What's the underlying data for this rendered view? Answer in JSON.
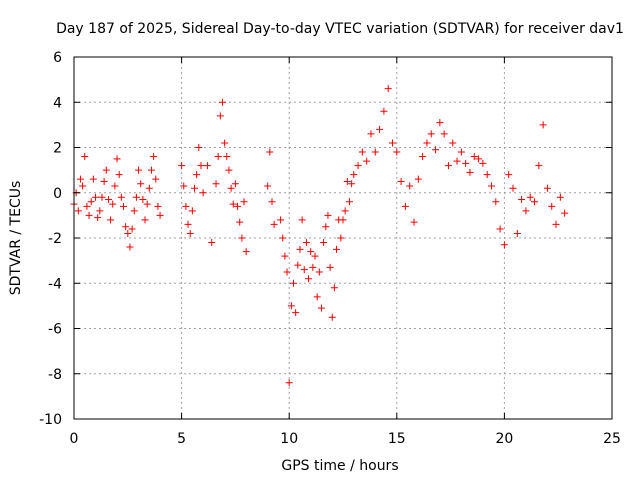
{
  "chart_data": {
    "type": "scatter",
    "title": "Day 187 of 2025, Sidereal Day-to-day VTEC variation (SDTVAR) for receiver dav1",
    "xlabel": "GPS time / hours",
    "ylabel": "SDTVAR / TECUs",
    "xlim": [
      0,
      25
    ],
    "ylim": [
      -10,
      6
    ],
    "xticks": [
      0,
      5,
      10,
      15,
      20,
      25
    ],
    "yticks": [
      -10,
      -8,
      -6,
      -4,
      -2,
      0,
      2,
      4,
      6
    ],
    "grid": true,
    "marker": "+",
    "color": "#ff0000",
    "series": [
      {
        "name": "SDTVAR",
        "x": [
          0.0,
          0.1,
          0.2,
          0.3,
          0.4,
          0.5,
          0.6,
          0.7,
          0.8,
          0.9,
          1.0,
          1.1,
          1.2,
          1.3,
          1.4,
          1.5,
          1.6,
          1.7,
          1.8,
          1.9,
          2.0,
          2.1,
          2.2,
          2.3,
          2.4,
          2.5,
          2.6,
          2.7,
          2.8,
          2.9,
          3.0,
          3.1,
          3.2,
          3.3,
          3.4,
          3.5,
          3.6,
          3.7,
          3.8,
          3.9,
          4.0,
          5.0,
          5.1,
          5.2,
          5.3,
          5.4,
          5.5,
          5.6,
          5.7,
          5.8,
          5.9,
          6.0,
          6.2,
          6.4,
          6.6,
          6.7,
          6.8,
          6.9,
          7.0,
          7.1,
          7.2,
          7.3,
          7.4,
          7.5,
          7.6,
          7.7,
          7.8,
          7.9,
          8.0,
          9.0,
          9.1,
          9.2,
          9.3,
          9.6,
          9.7,
          9.8,
          9.9,
          10.0,
          10.1,
          10.2,
          10.3,
          10.4,
          10.5,
          10.6,
          10.7,
          10.8,
          10.9,
          11.0,
          11.1,
          11.2,
          11.3,
          11.4,
          11.5,
          11.6,
          11.7,
          11.8,
          11.9,
          12.0,
          12.1,
          12.2,
          12.3,
          12.4,
          12.5,
          12.6,
          12.7,
          12.8,
          12.9,
          13.0,
          13.2,
          13.4,
          13.6,
          13.8,
          14.0,
          14.2,
          14.4,
          14.6,
          14.8,
          15.0,
          15.2,
          15.4,
          15.6,
          15.8,
          16.0,
          16.2,
          16.4,
          16.6,
          16.8,
          17.0,
          17.2,
          17.4,
          17.6,
          17.8,
          18.0,
          18.2,
          18.4,
          18.6,
          18.8,
          19.0,
          19.2,
          19.4,
          19.6,
          19.8,
          20.0,
          20.2,
          20.4,
          20.6,
          20.8,
          21.0,
          21.2,
          21.4,
          21.6,
          21.8,
          22.0,
          22.2,
          22.4,
          22.6,
          22.8
        ],
        "y": [
          -0.5,
          0.0,
          -0.8,
          0.6,
          0.3,
          1.6,
          -0.6,
          -1.0,
          -0.4,
          0.6,
          -0.2,
          -1.1,
          -0.8,
          -0.2,
          0.5,
          1.0,
          -0.3,
          -1.2,
          -0.5,
          0.3,
          1.5,
          0.8,
          -0.2,
          -0.6,
          -1.5,
          -1.8,
          -2.4,
          -1.6,
          -0.8,
          -0.2,
          1.0,
          0.4,
          -0.3,
          -1.2,
          -0.5,
          0.2,
          1.0,
          1.6,
          0.6,
          -0.6,
          -1.0,
          1.2,
          0.3,
          -0.6,
          -1.4,
          -1.8,
          -0.8,
          0.2,
          0.8,
          2.0,
          1.2,
          0.0,
          1.2,
          -2.2,
          0.4,
          1.6,
          3.4,
          4.0,
          2.2,
          1.6,
          1.0,
          0.2,
          -0.5,
          0.4,
          -0.6,
          -1.3,
          -2.0,
          -0.4,
          -2.6,
          0.3,
          1.8,
          -0.4,
          -1.4,
          -1.2,
          -2.0,
          -2.8,
          -3.5,
          -8.4,
          -5.0,
          -4.0,
          -5.3,
          -3.2,
          -2.5,
          -1.2,
          -3.4,
          -2.2,
          -3.8,
          -2.6,
          -3.3,
          -2.8,
          -4.6,
          -3.5,
          -5.1,
          -2.2,
          -1.5,
          -1.0,
          -3.3,
          -5.5,
          -4.2,
          -2.5,
          -1.2,
          -2.0,
          -1.2,
          -0.8,
          0.5,
          -0.4,
          0.4,
          0.8,
          1.2,
          1.8,
          1.4,
          2.6,
          1.8,
          2.8,
          3.6,
          4.6,
          2.2,
          1.8,
          0.5,
          -0.6,
          0.3,
          -1.3,
          0.6,
          1.6,
          2.2,
          2.6,
          1.9,
          3.1,
          2.6,
          1.2,
          2.2,
          1.4,
          1.8,
          1.3,
          0.9,
          1.6,
          1.5,
          1.3,
          0.8,
          0.3,
          -0.4,
          -1.6,
          -2.3,
          0.8,
          0.2,
          -1.8,
          -0.3,
          -0.8,
          -0.2,
          -0.4,
          1.2,
          3.0,
          0.2,
          -0.6,
          -1.4,
          -0.2,
          -0.9
        ]
      }
    ]
  }
}
